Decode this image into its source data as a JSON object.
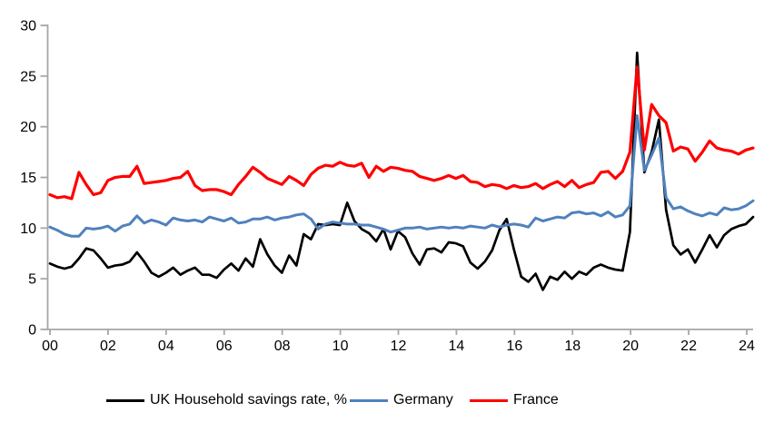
{
  "chart_data": {
    "type": "line",
    "title": "",
    "frequency": "quarterly",
    "x_start_year": 2000,
    "x_tick_labels": [
      "00",
      "02",
      "04",
      "06",
      "08",
      "10",
      "12",
      "14",
      "16",
      "18",
      "20",
      "22",
      "24"
    ],
    "y_ticks": [
      "0",
      "5",
      "10",
      "15",
      "20",
      "25",
      "30"
    ],
    "ylim": [
      0,
      30
    ],
    "grid": false,
    "legend_position": "bottom",
    "axis_color": "#A6A6A6",
    "series": [
      {
        "name": "UK Household savings rate, %",
        "color": "#000000",
        "values": [
          6.5,
          6.2,
          6.0,
          6.2,
          7.0,
          8.0,
          7.8,
          7.0,
          6.1,
          6.3,
          6.4,
          6.7,
          7.6,
          6.7,
          5.6,
          5.2,
          5.6,
          6.1,
          5.4,
          5.8,
          6.1,
          5.4,
          5.4,
          5.1,
          5.9,
          6.5,
          5.8,
          7.0,
          6.2,
          8.9,
          7.4,
          6.3,
          5.6,
          7.3,
          6.3,
          9.4,
          8.9,
          10.4,
          10.3,
          10.4,
          10.3,
          12.5,
          10.7,
          9.9,
          9.5,
          8.7,
          9.9,
          7.9,
          9.7,
          9.1,
          7.5,
          6.4,
          7.9,
          8.0,
          7.6,
          8.6,
          8.5,
          8.2,
          6.6,
          6.0,
          6.7,
          7.8,
          9.8,
          10.9,
          7.9,
          5.2,
          4.7,
          5.5,
          3.9,
          5.2,
          4.9,
          5.7,
          5.0,
          5.7,
          5.4,
          6.1,
          6.4,
          6.1,
          5.9,
          5.8,
          9.6,
          27.3,
          15.5,
          17.5,
          20.7,
          11.8,
          8.3,
          7.4,
          7.9,
          6.6,
          7.9,
          9.3,
          8.1,
          9.3,
          9.9,
          10.2,
          10.4,
          11.1
        ]
      },
      {
        "name": "Germany",
        "color": "#4F81BD",
        "values": [
          10.1,
          9.8,
          9.4,
          9.2,
          9.2,
          10.0,
          9.9,
          10.0,
          10.2,
          9.7,
          10.2,
          10.4,
          11.2,
          10.5,
          10.8,
          10.6,
          10.3,
          11.0,
          10.8,
          10.7,
          10.8,
          10.6,
          11.1,
          10.9,
          10.7,
          11.0,
          10.5,
          10.6,
          10.9,
          10.9,
          11.1,
          10.8,
          11.0,
          11.1,
          11.3,
          11.4,
          10.9,
          9.9,
          10.4,
          10.6,
          10.5,
          10.4,
          10.4,
          10.3,
          10.3,
          10.1,
          9.9,
          9.6,
          9.8,
          10.0,
          10.0,
          10.1,
          9.9,
          10.0,
          10.1,
          10.0,
          10.1,
          10.0,
          10.2,
          10.1,
          10.0,
          10.3,
          10.1,
          10.3,
          10.4,
          10.3,
          10.1,
          11.0,
          10.7,
          10.9,
          11.1,
          11.0,
          11.5,
          11.6,
          11.4,
          11.5,
          11.2,
          11.6,
          11.1,
          11.3,
          12.2,
          21.1,
          15.7,
          17.2,
          18.9,
          13.0,
          11.9,
          12.1,
          11.7,
          11.4,
          11.2,
          11.5,
          11.3,
          12.0,
          11.8,
          11.9,
          12.2,
          12.7
        ]
      },
      {
        "name": "France",
        "color": "#FF0000",
        "values": [
          13.3,
          13.0,
          13.1,
          12.9,
          15.5,
          14.3,
          13.3,
          13.5,
          14.7,
          15.0,
          15.1,
          15.1,
          16.1,
          14.4,
          14.5,
          14.6,
          14.7,
          14.9,
          15.0,
          15.6,
          14.2,
          13.7,
          13.8,
          13.8,
          13.6,
          13.3,
          14.3,
          15.1,
          16.0,
          15.5,
          14.9,
          14.6,
          14.3,
          15.1,
          14.7,
          14.2,
          15.3,
          15.9,
          16.2,
          16.1,
          16.5,
          16.2,
          16.1,
          16.4,
          15.0,
          16.1,
          15.6,
          16.0,
          15.9,
          15.7,
          15.6,
          15.1,
          14.9,
          14.7,
          14.9,
          15.2,
          14.9,
          15.2,
          14.6,
          14.5,
          14.1,
          14.3,
          14.2,
          13.9,
          14.2,
          14.0,
          14.1,
          14.4,
          13.9,
          14.3,
          14.6,
          14.1,
          14.7,
          14.0,
          14.3,
          14.5,
          15.5,
          15.6,
          14.9,
          15.6,
          17.5,
          25.9,
          17.7,
          22.2,
          21.1,
          20.4,
          17.6,
          18.0,
          17.8,
          16.6,
          17.5,
          18.6,
          17.9,
          17.7,
          17.6,
          17.3,
          17.7,
          17.9
        ]
      }
    ]
  },
  "legend": {
    "items": [
      {
        "label": "UK Household savings rate, %"
      },
      {
        "label": "Germany"
      },
      {
        "label": "France"
      }
    ]
  }
}
